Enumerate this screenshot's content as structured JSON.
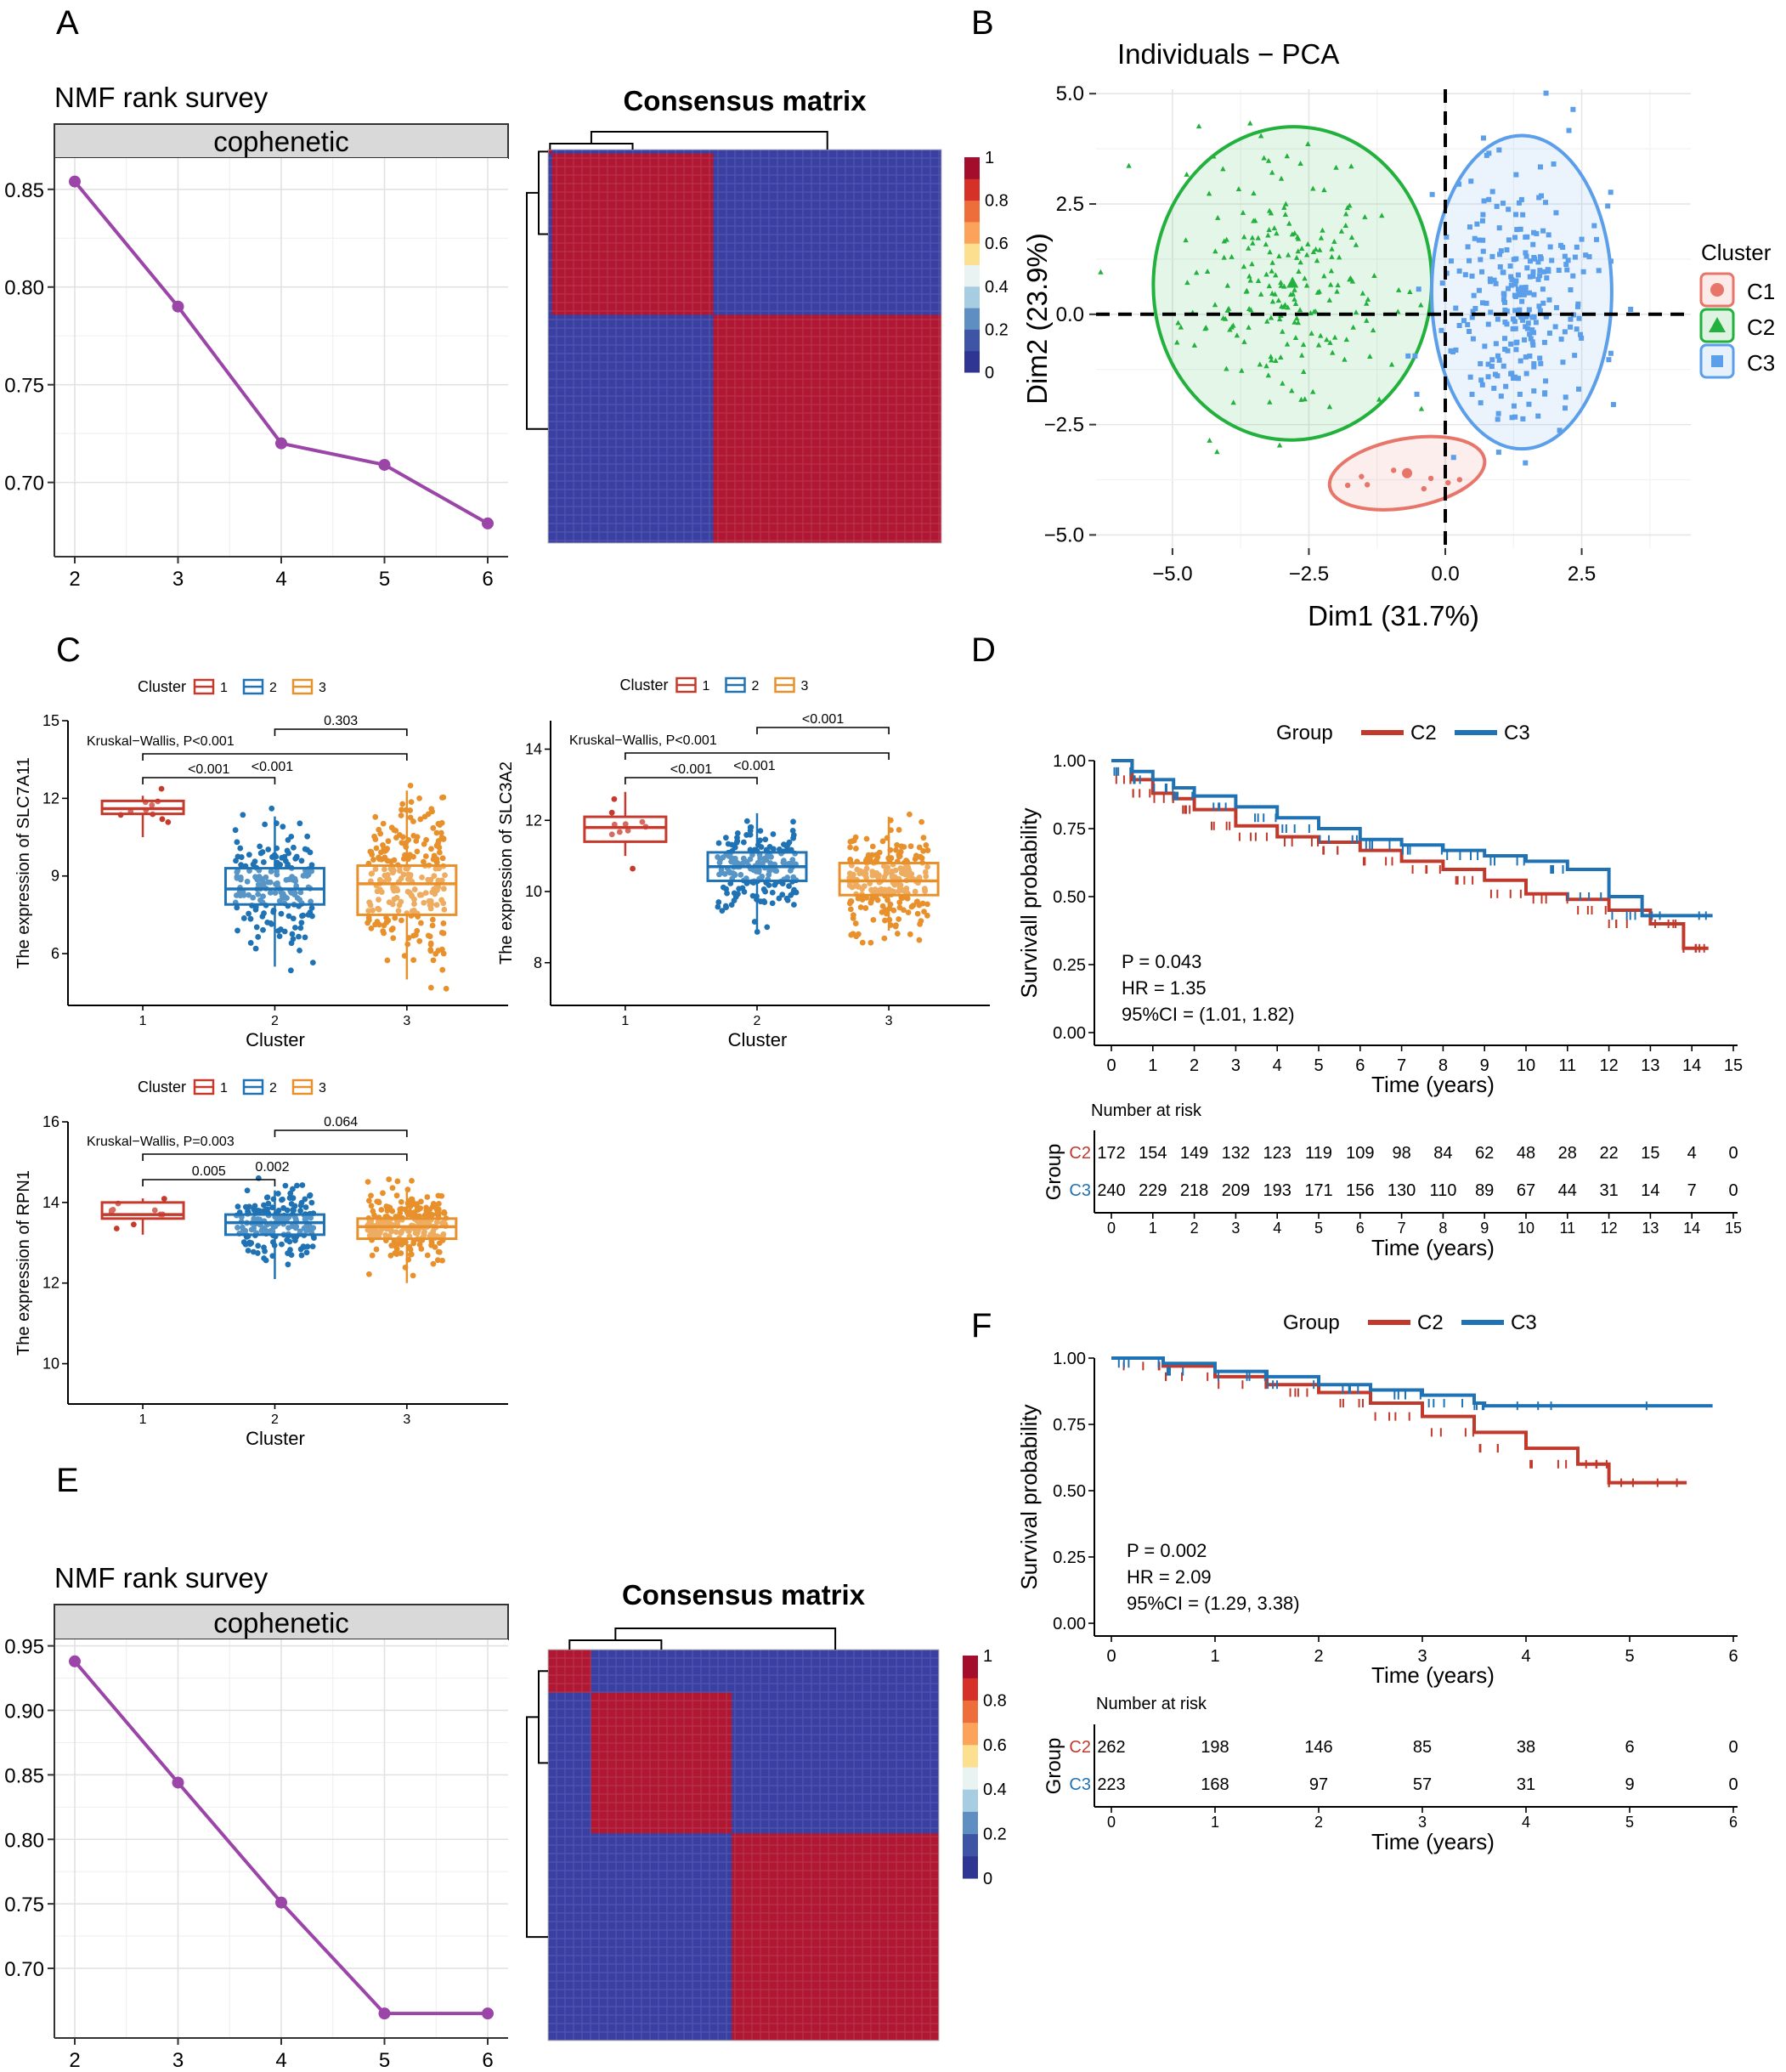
{
  "chart_data": [
    {
      "panel": "A",
      "type": "line",
      "title": "NMF rank survey",
      "strip": "cophenetic",
      "x": [
        2,
        3,
        4,
        5,
        6
      ],
      "values": [
        0.854,
        0.79,
        0.72,
        0.709,
        0.679
      ],
      "xticks": [
        "2",
        "3",
        "4",
        "5",
        "6"
      ],
      "yticks": [
        "0.70",
        "0.75",
        "0.80",
        "0.85"
      ],
      "ylim": [
        0.662,
        0.866
      ],
      "color": "#9b45a8"
    },
    {
      "panel": "A",
      "type": "heatmap",
      "title": "Consensus matrix",
      "clusters": [
        0.01,
        0.41,
        0.58
      ],
      "legend_ticks": [
        "1",
        "0.8",
        "0.6",
        "0.4",
        "0.2",
        "0"
      ],
      "colors": [
        "#2e3592",
        "#4a64ad",
        "#86b6d8",
        "#e8f3f2",
        "#fde08f",
        "#f8a55d",
        "#de4a36",
        "#a40d2b"
      ]
    },
    {
      "panel": "B",
      "type": "scatter",
      "title": "Individuals − PCA",
      "xlabel": "Dim1 (31.7%)",
      "ylabel": "Dim2 (23.9%)",
      "xticks": [
        "−5.0",
        "−2.5",
        "0.0",
        "2.5"
      ],
      "yticks": [
        "5.0",
        "2.5",
        "0.0",
        "−2.5",
        "−5.0"
      ],
      "xlim": [
        -6.4,
        4.5
      ],
      "ylim": [
        -5.3,
        5.1
      ],
      "legend_title": "Cluster",
      "series": [
        {
          "name": "C1",
          "color": "#e8756a",
          "n": 8,
          "center": [
            -0.7,
            -3.6
          ],
          "ellipse": [
            1.44,
            0.78,
            -0.18
          ]
        },
        {
          "name": "C2",
          "color": "#21b13c",
          "n": 210,
          "center": [
            -2.8,
            0.7
          ],
          "ellipse": [
            2.55,
            3.55,
            0.05
          ]
        },
        {
          "name": "C3",
          "color": "#5b9eea",
          "n": 280,
          "center": [
            1.4,
            0.5
          ],
          "ellipse": [
            1.65,
            3.55,
            0.0
          ]
        }
      ]
    },
    {
      "panel": "C",
      "type": "box",
      "ylabel": "The expression of SLC7A11",
      "xlabel": "Cluster",
      "categories": [
        "1",
        "2",
        "3"
      ],
      "ylim": [
        4,
        15
      ],
      "yticks": [
        "6",
        "9",
        "12",
        "15"
      ],
      "boxes": [
        [
          10.5,
          11.4,
          11.6,
          11.9,
          12.1
        ],
        [
          5.5,
          7.9,
          8.5,
          9.3,
          11.3
        ],
        [
          5.0,
          7.5,
          8.7,
          9.4,
          12.3
        ]
      ],
      "n": [
        10,
        180,
        240
      ],
      "test": "Kruskal−Wallis, P<0.001",
      "brackets": [
        "0.303",
        "<0.001",
        "<0.001"
      ]
    },
    {
      "panel": "C",
      "type": "box",
      "ylabel": "The expression of SLC3A2",
      "xlabel": "Cluster",
      "categories": [
        "1",
        "2",
        "3"
      ],
      "ylim": [
        6.8,
        14.8
      ],
      "yticks": [
        "8",
        "10",
        "12",
        "14"
      ],
      "boxes": [
        [
          11.0,
          11.4,
          11.8,
          12.1,
          12.8
        ],
        [
          8.8,
          10.3,
          10.7,
          11.1,
          12.2
        ],
        [
          8.9,
          9.9,
          10.3,
          10.8,
          12.1
        ]
      ],
      "n": [
        10,
        180,
        240
      ],
      "test": "Kruskal−Wallis, P<0.001",
      "brackets": [
        "<0.001",
        "<0.001",
        "<0.001"
      ]
    },
    {
      "panel": "C",
      "type": "box",
      "ylabel": "The expression of RPN1",
      "xlabel": "Cluster",
      "categories": [
        "1",
        "2",
        "3"
      ],
      "ylim": [
        9,
        16
      ],
      "yticks": [
        "10",
        "12",
        "14",
        "16"
      ],
      "boxes": [
        [
          13.2,
          13.6,
          13.7,
          14.0,
          14.1
        ],
        [
          12.1,
          13.2,
          13.5,
          13.7,
          14.3
        ],
        [
          12.0,
          13.1,
          13.4,
          13.6,
          14.3
        ]
      ],
      "n": [
        10,
        180,
        240
      ],
      "test": "Kruskal−Wallis, P=0.003",
      "brackets": [
        "0.064",
        "0.002",
        "0.005"
      ]
    },
    {
      "panel": "D",
      "type": "line",
      "ylabel": "Survivall probability",
      "xlabel": "Time (years)",
      "legend_title": "Group",
      "xticks": [
        "0",
        "1",
        "2",
        "3",
        "4",
        "5",
        "6",
        "7",
        "8",
        "9",
        "10",
        "11",
        "12",
        "13",
        "14",
        "15"
      ],
      "yticks": [
        "0.00",
        "0.25",
        "0.50",
        "0.75",
        "1.00"
      ],
      "xlim": [
        0,
        15
      ],
      "ylim": [
        0,
        1
      ],
      "series": [
        {
          "name": "C2",
          "color": "#c0392b",
          "x": [
            0,
            0.5,
            1,
            1.5,
            2,
            3,
            4,
            5,
            6,
            7,
            8,
            9,
            10,
            11,
            12,
            13,
            13.8,
            13.8,
            14.4
          ],
          "values": [
            1,
            0.93,
            0.88,
            0.86,
            0.82,
            0.76,
            0.72,
            0.7,
            0.67,
            0.63,
            0.6,
            0.56,
            0.51,
            0.49,
            0.45,
            0.4,
            0.4,
            0.31,
            0.31
          ]
        },
        {
          "name": "C3",
          "color": "#1f72b3",
          "x": [
            0,
            0.5,
            1,
            1.5,
            2,
            3,
            4,
            5,
            6,
            7,
            8,
            9,
            10,
            11,
            12,
            12.8,
            14.5
          ],
          "values": [
            1,
            0.96,
            0.93,
            0.9,
            0.87,
            0.83,
            0.79,
            0.75,
            0.71,
            0.69,
            0.67,
            0.65,
            0.63,
            0.6,
            0.5,
            0.43,
            0.43
          ]
        }
      ],
      "stats": [
        "P = 0.043",
        "HR = 1.35",
        "95%CI = (1.01, 1.82)"
      ],
      "risk_title": "Number at risk",
      "risk_group": "Group",
      "risk": {
        "C2": [
          "172",
          "154",
          "149",
          "132",
          "123",
          "119",
          "109",
          "98",
          "84",
          "62",
          "48",
          "28",
          "22",
          "15",
          "4",
          "0"
        ],
        "C3": [
          "240",
          "229",
          "218",
          "209",
          "193",
          "171",
          "156",
          "130",
          "110",
          "89",
          "67",
          "44",
          "31",
          "14",
          "7",
          "0"
        ]
      }
    },
    {
      "panel": "E",
      "type": "line",
      "title": "NMF rank survey",
      "strip": "cophenetic",
      "x": [
        2,
        3,
        4,
        5,
        6
      ],
      "values": [
        0.938,
        0.844,
        0.751,
        0.665,
        0.665
      ],
      "xticks": [
        "2",
        "3",
        "4",
        "5",
        "6"
      ],
      "yticks": [
        "0.70",
        "0.75",
        "0.80",
        "0.85",
        "0.90",
        "0.95"
      ],
      "ylim": [
        0.646,
        0.955
      ],
      "color": "#9b45a8"
    },
    {
      "panel": "E",
      "type": "heatmap",
      "title": "Consensus matrix",
      "clusters": [
        0.11,
        0.36,
        0.53
      ],
      "legend_ticks": [
        "1",
        "0.8",
        "0.6",
        "0.4",
        "0.2",
        "0"
      ]
    },
    {
      "panel": "F",
      "type": "line",
      "ylabel": "Survival probability",
      "xlabel": "Time (years)",
      "legend_title": "Group",
      "xticks": [
        "0",
        "1",
        "2",
        "3",
        "4",
        "5",
        "6"
      ],
      "yticks": [
        "0.00",
        "0.25",
        "0.50",
        "0.75",
        "1.00"
      ],
      "xlim": [
        0,
        6
      ],
      "ylim": [
        0,
        1
      ],
      "series": [
        {
          "name": "C2",
          "color": "#c0392b",
          "x": [
            0,
            0.5,
            1,
            1.5,
            2,
            2.5,
            3,
            3.5,
            4,
            4.5,
            4.8,
            4.8,
            5.55
          ],
          "values": [
            1,
            0.97,
            0.93,
            0.9,
            0.87,
            0.83,
            0.78,
            0.72,
            0.66,
            0.6,
            0.6,
            0.53,
            0.53
          ]
        },
        {
          "name": "C3",
          "color": "#1f72b3",
          "x": [
            0,
            0.5,
            1,
            1.5,
            2,
            2.5,
            3,
            3.5,
            3.6,
            5.8
          ],
          "values": [
            1,
            0.98,
            0.95,
            0.93,
            0.9,
            0.88,
            0.86,
            0.83,
            0.82,
            0.82
          ]
        }
      ],
      "stats": [
        "P = 0.002",
        "HR = 2.09",
        "95%CI = (1.29, 3.38)"
      ],
      "risk_title": "Number at risk",
      "risk_group": "Group",
      "risk": {
        "C2": [
          "262",
          "198",
          "146",
          "85",
          "38",
          "6",
          "0"
        ],
        "C3": [
          "223",
          "168",
          "97",
          "57",
          "31",
          "9",
          "0"
        ]
      }
    }
  ],
  "labels": {
    "A": "A",
    "B": "B",
    "C": "C",
    "D": "D",
    "E": "E",
    "F": "F"
  },
  "colors": {
    "purple": "#9b45a8",
    "red": "#a40d2b",
    "blue": "#2e3592",
    "c1": "#c53a2c",
    "c2": "#1f72b3",
    "c3": "#e8912c"
  },
  "box_legend": {
    "title": "Cluster",
    "items": [
      "1",
      "2",
      "3"
    ]
  }
}
